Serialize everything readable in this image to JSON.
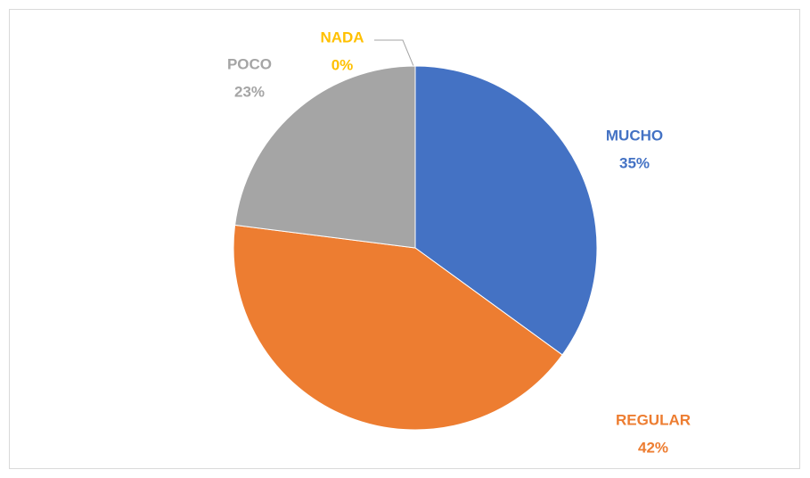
{
  "chart_data": {
    "type": "pie",
    "categories": [
      "MUCHO",
      "REGULAR",
      "POCO",
      "NADA"
    ],
    "values": [
      35,
      42,
      23,
      0
    ],
    "value_labels": [
      "35%",
      "42%",
      "23%",
      "0%"
    ],
    "colors": [
      "#4472c4",
      "#ed7d31",
      "#a5a5a5",
      "#ffc000"
    ]
  }
}
